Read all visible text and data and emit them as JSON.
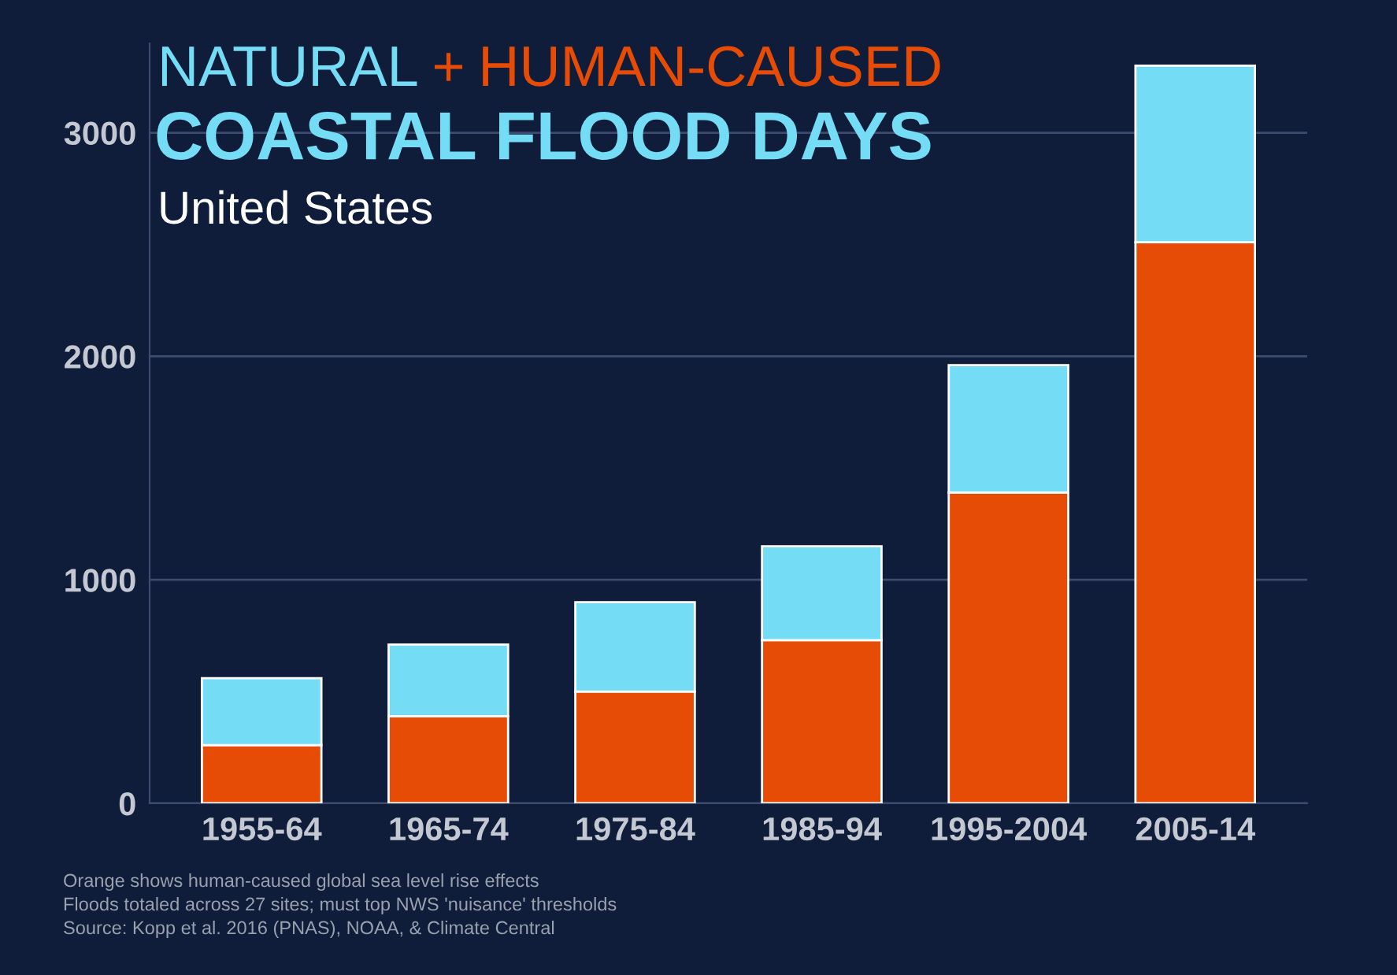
{
  "chart_data": {
    "type": "bar",
    "stacked": true,
    "title": "COASTAL FLOOD DAYS",
    "subtitle": "United States",
    "categories": [
      "1955-64",
      "1965-74",
      "1975-84",
      "1985-94",
      "1995-2004",
      "2005-14"
    ],
    "series": [
      {
        "name": "HUMAN-CAUSED",
        "color": "#e64c05",
        "values": [
          260,
          390,
          500,
          730,
          1390,
          2510
        ]
      },
      {
        "name": "NATURAL",
        "color": "#74dcf5",
        "values": [
          300,
          320,
          400,
          420,
          570,
          790
        ]
      }
    ],
    "ylim": [
      0,
      3400
    ],
    "yticks": [
      0,
      1000,
      2000,
      3000
    ],
    "grid": "y",
    "legend": "top left",
    "annotations": [
      "+",
      "Orange shows human-caused global sea level rise effects",
      "Floods totaled across 27 sites; must top NWS 'nuisance' thresholds",
      "Source: Kopp et al. 2016 (PNAS), NOAA, & Climate Central"
    ]
  }
}
